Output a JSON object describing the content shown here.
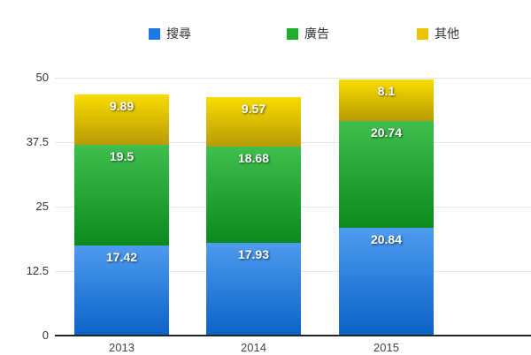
{
  "legend": {
    "items": [
      {
        "label": "搜尋",
        "color": "#1E78E5"
      },
      {
        "label": "廣告",
        "color": "#1FAE2B"
      },
      {
        "label": "其他",
        "color": "#EBC504"
      }
    ]
  },
  "chart_data": {
    "type": "bar",
    "stacked": true,
    "title": "",
    "xlabel": "",
    "ylabel": "",
    "categories": [
      "2013",
      "2014",
      "2015"
    ],
    "series": [
      {
        "name": "搜尋",
        "values": [
          17.42,
          17.93,
          20.84
        ],
        "labels": [
          "17.42",
          "17.93",
          "20.84"
        ],
        "color_top": "#4E9BEF",
        "color_bottom": "#0C62C8",
        "legend_color": "#1E78E5"
      },
      {
        "name": "廣告",
        "values": [
          19.5,
          18.68,
          20.74
        ],
        "labels": [
          "19.5",
          "18.68",
          "20.74"
        ],
        "color_top": "#3FBF4D",
        "color_bottom": "#0C8A1E",
        "legend_color": "#1FAE2B"
      },
      {
        "name": "其他",
        "values": [
          9.89,
          9.57,
          8.1
        ],
        "labels": [
          "9.89",
          "9.57",
          "8.1"
        ],
        "color_top": "#F8DC00",
        "color_bottom": "#B89B04",
        "legend_color": "#EBC504"
      }
    ],
    "totals": [
      46.81,
      46.18,
      49.68
    ],
    "yticks": [
      0,
      12.5,
      25,
      37.5,
      50
    ],
    "ytick_labels": [
      "0",
      "12.5",
      "25",
      "37.5",
      "50"
    ],
    "ylim": [
      0,
      50
    ],
    "grid": true,
    "legend_position": "top",
    "value_label_color": "#ffffff",
    "axis_color": "#222222",
    "gridline_color": "#e6e6e6"
  }
}
